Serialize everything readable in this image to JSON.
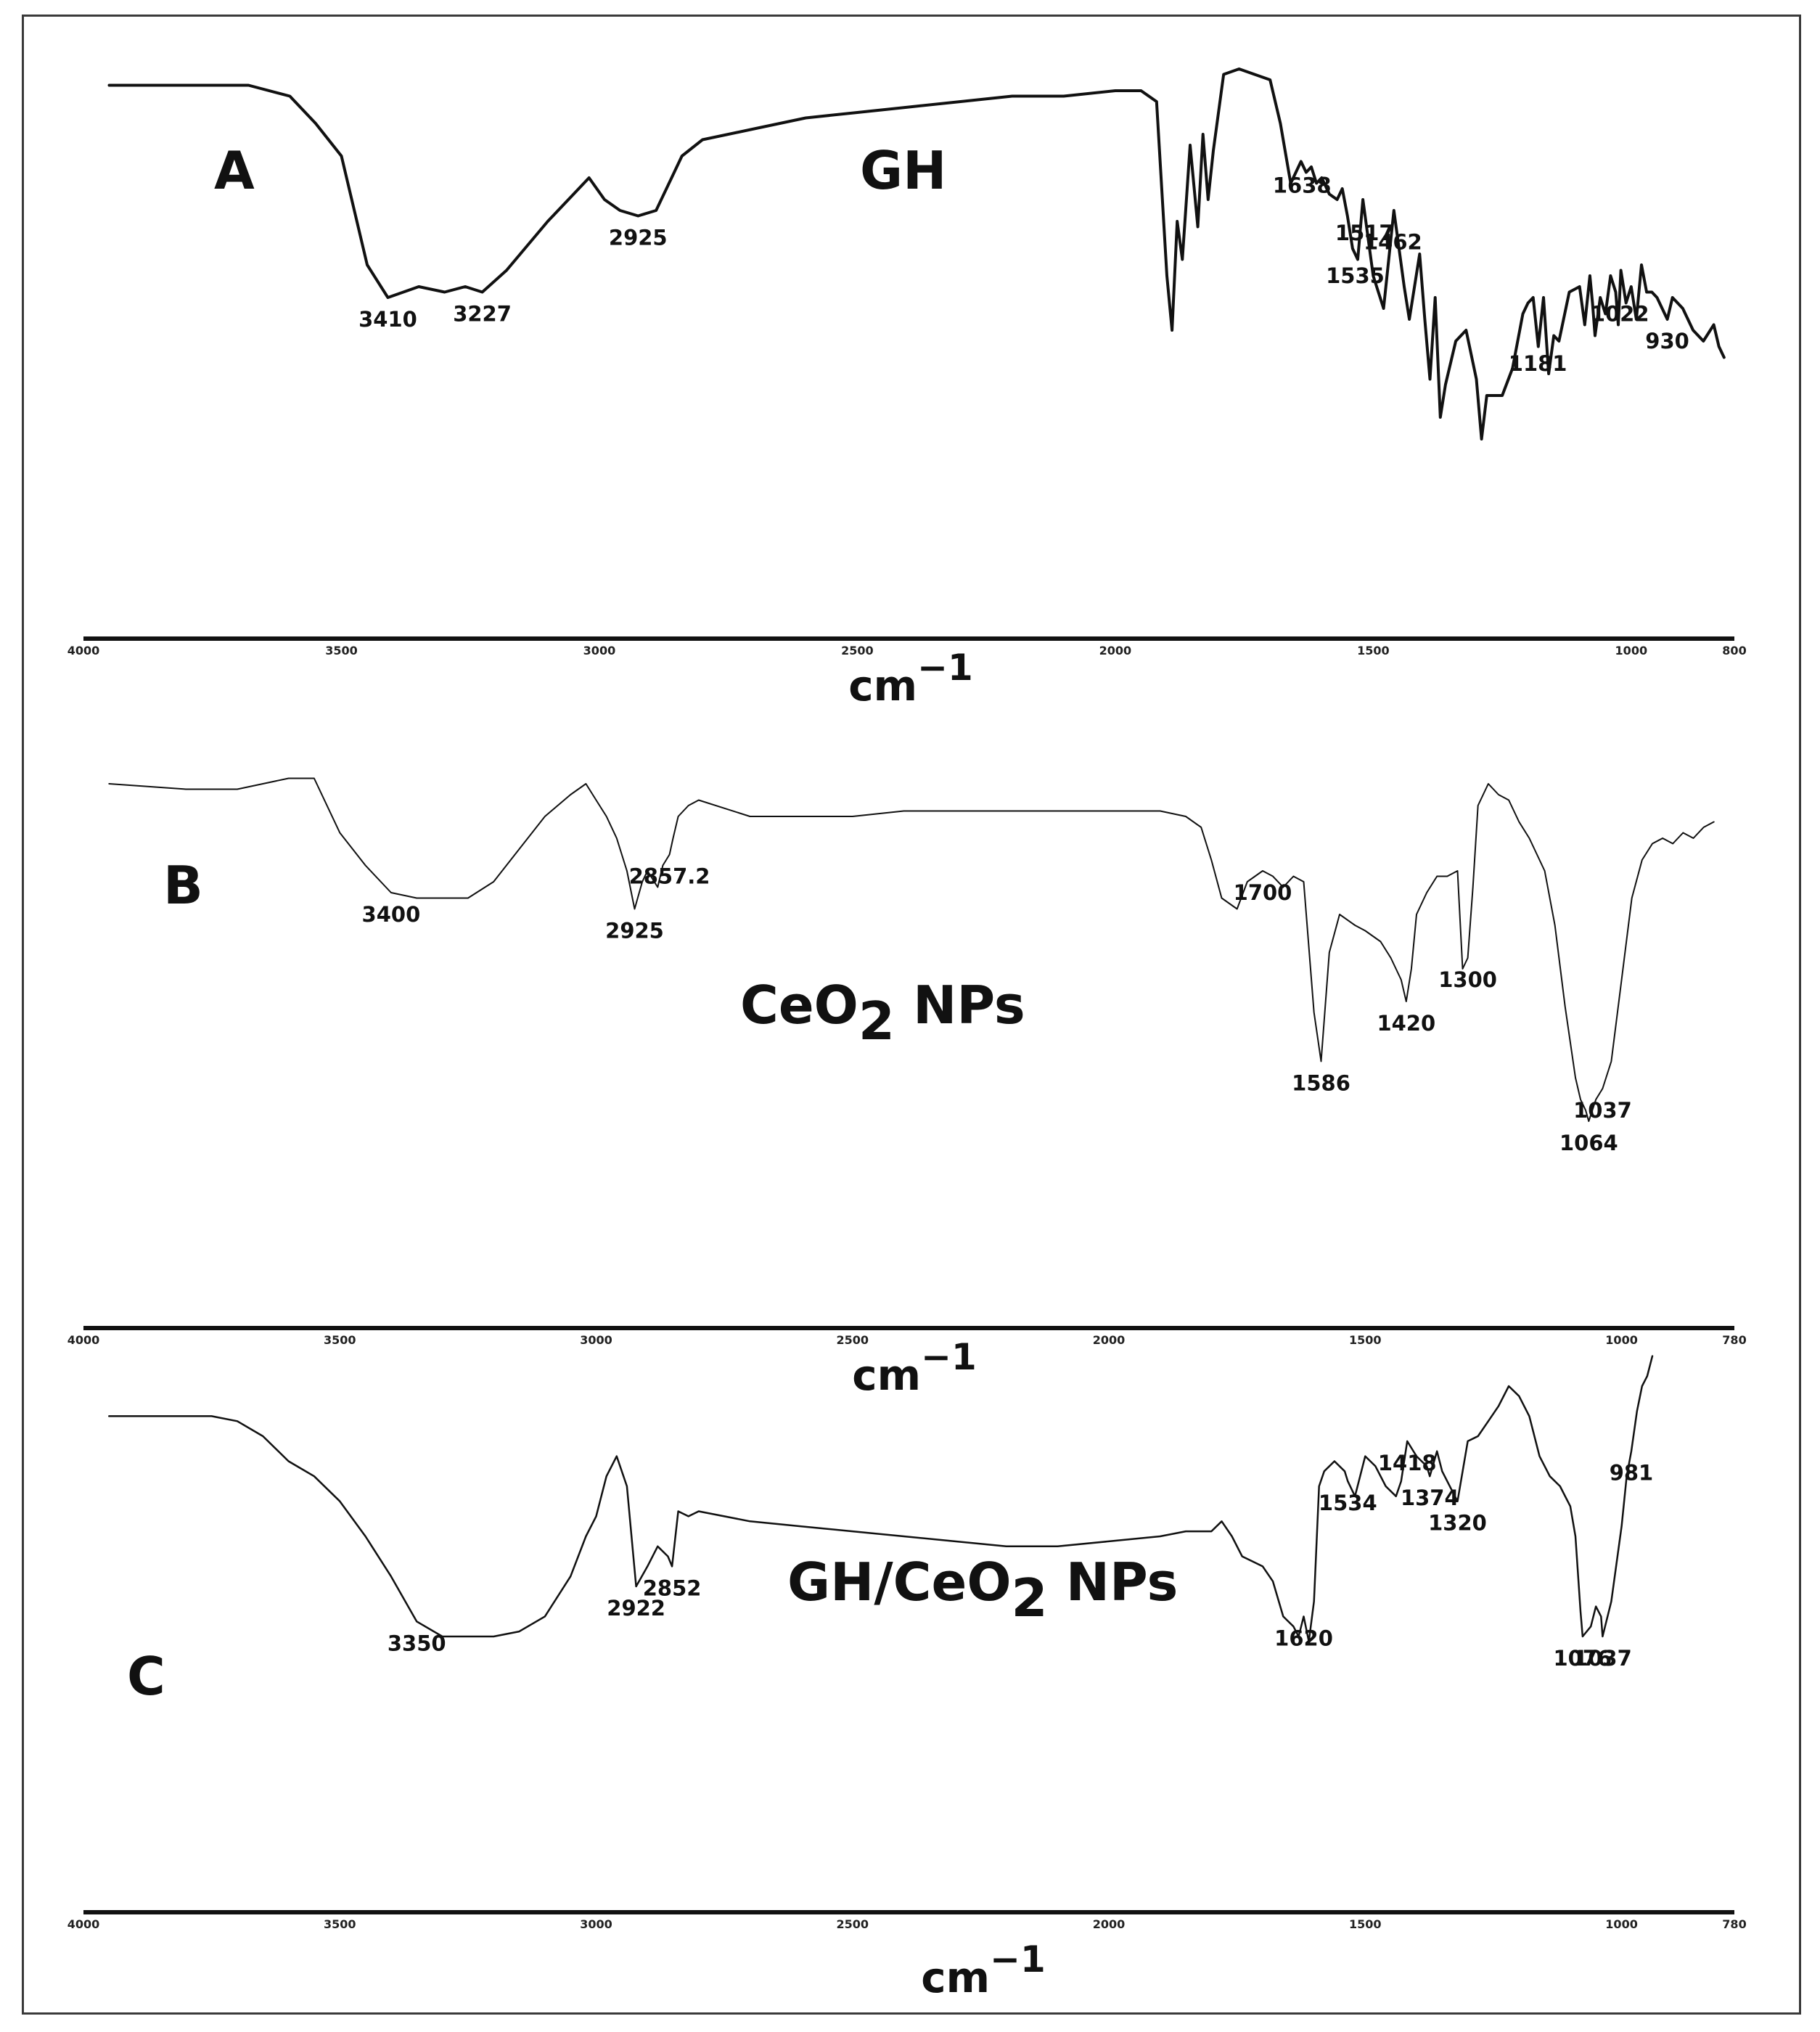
{
  "chart_data": [
    {
      "type": "line",
      "panel": "A",
      "title": "GH",
      "xlabel": "cm",
      "xlabel_sup": "−1",
      "xlim": [
        4000,
        800
      ],
      "tick_labels": [
        "4000",
        "3500",
        "3000",
        "2500",
        "2000",
        "1500",
        "1000",
        "800"
      ],
      "tick_values": [
        4000,
        3500,
        3000,
        2500,
        2000,
        1500,
        1000,
        800
      ],
      "trace_width": 4,
      "series": [
        {
          "x": [
            3950,
            3800,
            3680,
            3600,
            3550,
            3500,
            3450,
            3410,
            3350,
            3300,
            3260,
            3227,
            3180,
            3100,
            3050,
            3020,
            2990,
            2960,
            2925,
            2890,
            2860,
            2840,
            2800,
            2700,
            2600,
            2500,
            2400,
            2300,
            2200,
            2100,
            2000,
            1950,
            1920,
            1900,
            1890,
            1880,
            1870,
            1855,
            1840,
            1830,
            1820,
            1810,
            1790,
            1760,
            1730,
            1700,
            1680,
            1660,
            1640,
            1630,
            1620,
            1610,
            1600,
            1585,
            1570,
            1560,
            1550,
            1540,
            1530,
            1520,
            1500,
            1480,
            1460,
            1440,
            1430,
            1410,
            1400,
            1390,
            1380,
            1370,
            1360,
            1340,
            1320,
            1300,
            1290,
            1280,
            1250,
            1230,
            1210,
            1200,
            1190,
            1180,
            1170,
            1160,
            1150,
            1140,
            1120,
            1100,
            1090,
            1080,
            1075,
            1070,
            1060,
            1050,
            1040,
            1030,
            1025,
            1020,
            1010,
            1000,
            990,
            980,
            970,
            960,
            950,
            940,
            930,
            920,
            900,
            880,
            860,
            840,
            830,
            820
          ],
          "y": [
            95,
            95,
            95,
            93,
            88,
            82,
            62,
            56,
            58,
            57,
            58,
            57,
            61,
            70,
            75,
            78,
            74,
            72,
            71,
            72,
            78,
            82,
            85,
            87,
            89,
            90,
            91,
            92,
            93,
            93,
            94,
            94,
            92,
            60,
            50,
            70,
            63,
            84,
            69,
            86,
            74,
            83,
            97,
            98,
            97,
            96,
            88,
            77,
            81,
            79,
            80,
            77,
            78,
            75,
            74,
            76,
            71,
            65,
            63,
            74,
            60,
            54,
            72,
            58,
            52,
            64,
            52,
            41,
            56,
            34,
            40,
            48,
            50,
            41,
            30,
            38,
            38,
            43,
            53,
            55,
            56,
            47,
            56,
            42,
            49,
            48,
            57,
            58,
            51,
            60,
            55,
            49,
            56,
            53,
            60,
            57,
            51,
            61,
            55,
            58,
            52,
            62,
            57,
            57,
            56,
            54,
            52,
            56,
            54,
            50,
            48,
            51,
            47,
            45
          ]
        }
      ],
      "peaks": [
        {
          "label": "3410",
          "x": 3410
        },
        {
          "label": "3227",
          "x": 3227
        },
        {
          "label": "2925",
          "x": 2925
        },
        {
          "label": "1638",
          "x": 1638
        },
        {
          "label": "1535",
          "x": 1535
        },
        {
          "label": "1517",
          "x": 1517
        },
        {
          "label": "1462",
          "x": 1462
        },
        {
          "label": "1181",
          "x": 1181
        },
        {
          "label": "1022",
          "x": 1022
        },
        {
          "label": "930",
          "x": 930
        }
      ]
    },
    {
      "type": "line",
      "panel": "B",
      "title": "CeO",
      "title_sub": "2",
      "title_rest": " NPs",
      "xlabel": "cm",
      "xlabel_sup": "−1",
      "xlim": [
        4000,
        780
      ],
      "tick_labels": [
        "4000",
        "3500",
        "3000",
        "2500",
        "2000",
        "1500",
        "1000",
        "780"
      ],
      "tick_values": [
        4000,
        3500,
        3000,
        2500,
        2000,
        1500,
        1000,
        780
      ],
      "trace_width": 2,
      "series": [
        {
          "x": [
            3950,
            3800,
            3700,
            3650,
            3600,
            3550,
            3500,
            3450,
            3400,
            3350,
            3300,
            3250,
            3200,
            3150,
            3100,
            3050,
            3020,
            3000,
            2980,
            2960,
            2940,
            2925,
            2910,
            2900,
            2880,
            2870,
            2857,
            2850,
            2840,
            2820,
            2800,
            2700,
            2600,
            2500,
            2400,
            2300,
            2200,
            2100,
            2000,
            1900,
            1850,
            1820,
            1800,
            1780,
            1750,
            1730,
            1700,
            1680,
            1660,
            1640,
            1620,
            1600,
            1586,
            1570,
            1550,
            1520,
            1500,
            1470,
            1450,
            1430,
            1420,
            1410,
            1400,
            1380,
            1360,
            1340,
            1320,
            1310,
            1300,
            1290,
            1280,
            1260,
            1240,
            1220,
            1200,
            1180,
            1150,
            1130,
            1110,
            1090,
            1080,
            1070,
            1064,
            1050,
            1037,
            1020,
            1000,
            980,
            960,
            940,
            920,
            900,
            880,
            860,
            840,
            820
          ],
          "y": [
            96,
            95,
            95,
            96,
            97,
            97,
            87,
            81,
            76,
            75,
            75,
            75,
            78,
            84,
            90,
            94,
            96,
            93,
            90,
            86,
            80,
            73,
            78,
            80,
            77,
            81,
            83,
            86,
            90,
            92,
            93,
            90,
            90,
            90,
            91,
            91,
            91,
            91,
            91,
            91,
            90,
            88,
            82,
            75,
            73,
            78,
            80,
            79,
            77,
            79,
            78,
            54,
            45,
            65,
            72,
            70,
            69,
            67,
            64,
            60,
            56,
            62,
            72,
            76,
            79,
            79,
            80,
            62,
            64,
            77,
            92,
            96,
            94,
            93,
            89,
            86,
            80,
            70,
            55,
            42,
            38,
            36,
            34,
            38,
            40,
            45,
            60,
            75,
            82,
            85,
            86,
            85,
            87,
            86,
            88,
            89
          ]
        }
      ],
      "peaks": [
        {
          "label": "3400",
          "x": 3400
        },
        {
          "label": "2925",
          "x": 2925
        },
        {
          "label": "2857.2",
          "x": 2857
        },
        {
          "label": "1700",
          "x": 1700
        },
        {
          "label": "1586",
          "x": 1586
        },
        {
          "label": "1420",
          "x": 1420
        },
        {
          "label": "1300",
          "x": 1300
        },
        {
          "label": "1064",
          "x": 1064
        },
        {
          "label": "1037",
          "x": 1037
        }
      ]
    },
    {
      "type": "line",
      "panel": "C",
      "title": "GH/CeO",
      "title_sub": "2",
      "title_rest": " NPs",
      "xlabel": "cm",
      "xlabel_sup": "−1",
      "xlim": [
        4000,
        780
      ],
      "tick_labels": [
        "4000",
        "3500",
        "3000",
        "2500",
        "2000",
        "1500",
        "1000",
        "780"
      ],
      "tick_values": [
        4000,
        3500,
        3000,
        2500,
        2000,
        1500,
        1000,
        780
      ],
      "trace_width": 2.5,
      "series": [
        {
          "x": [
            3950,
            3850,
            3750,
            3700,
            3650,
            3600,
            3550,
            3500,
            3450,
            3400,
            3350,
            3300,
            3250,
            3200,
            3150,
            3100,
            3050,
            3020,
            3000,
            2980,
            2960,
            2940,
            2922,
            2900,
            2880,
            2860,
            2852,
            2840,
            2820,
            2800,
            2700,
            2600,
            2500,
            2400,
            2300,
            2200,
            2100,
            2000,
            1900,
            1850,
            1800,
            1780,
            1760,
            1740,
            1720,
            1700,
            1680,
            1660,
            1640,
            1630,
            1620,
            1610,
            1600,
            1590,
            1580,
            1560,
            1540,
            1534,
            1520,
            1500,
            1480,
            1460,
            1440,
            1430,
            1418,
            1400,
            1380,
            1374,
            1360,
            1350,
            1330,
            1320,
            1300,
            1280,
            1260,
            1240,
            1220,
            1200,
            1180,
            1160,
            1140,
            1120,
            1100,
            1090,
            1080,
            1076,
            1060,
            1050,
            1040,
            1037,
            1020,
            1000,
            990,
            981,
            970,
            960,
            950,
            940
          ],
          "y": [
            94,
            94,
            94,
            93,
            90,
            85,
            82,
            77,
            70,
            62,
            53,
            50,
            50,
            50,
            51,
            54,
            62,
            70,
            74,
            82,
            86,
            80,
            60,
            64,
            68,
            66,
            64,
            75,
            74,
            75,
            73,
            72,
            71,
            70,
            69,
            68,
            68,
            69,
            70,
            71,
            71,
            73,
            70,
            66,
            65,
            64,
            61,
            54,
            52,
            50,
            54,
            49,
            57,
            80,
            83,
            85,
            83,
            81,
            78,
            86,
            84,
            80,
            78,
            81,
            89,
            86,
            84,
            82,
            87,
            83,
            79,
            77,
            89,
            90,
            93,
            96,
            100,
            98,
            94,
            86,
            82,
            80,
            76,
            70,
            55,
            50,
            52,
            56,
            54,
            50,
            57,
            72,
            82,
            87,
            95,
            100,
            102,
            106
          ]
        }
      ],
      "peaks": [
        {
          "label": "3350",
          "x": 3350
        },
        {
          "label": "2922",
          "x": 2922
        },
        {
          "label": "2852",
          "x": 2852
        },
        {
          "label": "1620",
          "x": 1620
        },
        {
          "label": "1534",
          "x": 1534
        },
        {
          "label": "1418",
          "x": 1418
        },
        {
          "label": "1374",
          "x": 1374
        },
        {
          "label": "1320",
          "x": 1320
        },
        {
          "label": "1076",
          "x": 1076
        },
        {
          "label": "1037",
          "x": 1037
        },
        {
          "label": "981",
          "x": 981
        }
      ]
    }
  ]
}
